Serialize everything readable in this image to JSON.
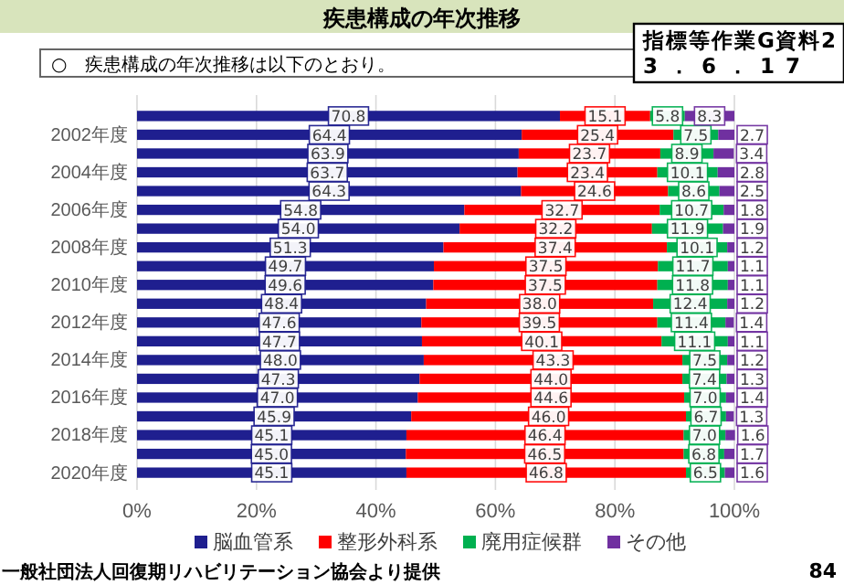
{
  "chart_data": {
    "type": "bar",
    "orientation": "horizontal",
    "stacked": true,
    "title": "疾患構成の年次推移",
    "subtitle": "○　疾患構成の年次推移は以下のとおり。",
    "categories": [
      null,
      "2002年度",
      null,
      "2004年度",
      null,
      "2006年度",
      null,
      "2008年度",
      null,
      "2010年度",
      null,
      "2012年度",
      null,
      "2014年度",
      null,
      "2016年度",
      null,
      "2018年度",
      null,
      "2020年度"
    ],
    "series": [
      {
        "name": "脳血管系",
        "color": "#1f1f8f",
        "values": [
          70.8,
          64.4,
          63.9,
          63.7,
          64.3,
          54.8,
          54.0,
          51.3,
          49.7,
          49.6,
          48.4,
          47.6,
          47.7,
          48.0,
          47.3,
          47.0,
          45.9,
          45.1,
          45.0,
          45.1
        ],
        "value_labels": [
          "70.8",
          "64.4",
          "63.9",
          "63.7",
          "64.3",
          "54.8",
          "54.0",
          "51.3",
          "49.7",
          "49.6",
          "48.4",
          "47.6",
          "47.7",
          "48.0",
          "47.3",
          "47.0",
          "45.9",
          "45.1",
          "45.0",
          "45.1"
        ]
      },
      {
        "name": "整形外科系",
        "color": "#ff0000",
        "values": [
          15.1,
          25.4,
          23.7,
          23.4,
          24.6,
          32.7,
          32.2,
          37.4,
          37.5,
          37.5,
          38.0,
          39.5,
          40.1,
          43.3,
          44.0,
          44.6,
          46.0,
          46.4,
          46.5,
          46.8
        ],
        "value_labels": [
          "15.1",
          "25.4",
          "23.7",
          "23.4",
          "24.6",
          "32.7",
          "32.2",
          "37.4",
          "37.5",
          "37.5",
          "38.0",
          "39.5",
          "40.1",
          "43.3",
          "44.0",
          "44.6",
          "46.0",
          "46.4",
          "46.5",
          "46.8"
        ]
      },
      {
        "name": "廃用症候群",
        "color": "#00b050",
        "values": [
          5.8,
          7.5,
          8.9,
          10.1,
          8.6,
          10.7,
          11.9,
          10.1,
          11.7,
          11.8,
          12.4,
          11.4,
          11.1,
          7.5,
          7.4,
          7.0,
          6.7,
          7.0,
          6.8,
          6.5
        ],
        "value_labels": [
          "5.8",
          "7.5",
          "8.9",
          "10.1",
          "8.6",
          "10.7",
          "11.9",
          "10.1",
          "11.7",
          "11.8",
          "12.4",
          "11.4",
          "11.1",
          "7.5",
          "7.4",
          "7.0",
          "6.7",
          "7.0",
          "6.8",
          "6.5"
        ]
      },
      {
        "name": "その他",
        "color": "#7030a0",
        "values": [
          8.3,
          2.7,
          3.4,
          2.8,
          2.5,
          1.8,
          1.9,
          1.2,
          1.1,
          1.1,
          1.2,
          1.4,
          1.1,
          1.2,
          1.3,
          1.4,
          1.3,
          1.6,
          1.7,
          1.6
        ],
        "value_labels": [
          "8.3",
          "2.7",
          "3.4",
          "2.8",
          "2.5",
          "1.8",
          "1.9",
          "1.2",
          "1.1",
          "1.1",
          "1.2",
          "1.4",
          "1.1",
          "1.2",
          "1.3",
          "1.4",
          "1.3",
          "1.6",
          "1.7",
          "1.6"
        ]
      }
    ],
    "xlim": [
      0,
      100
    ],
    "xticks": [
      {
        "value": 0,
        "label": "0%"
      },
      {
        "value": 20,
        "label": "20%"
      },
      {
        "value": 40,
        "label": "40%"
      },
      {
        "value": 60,
        "label": "60%"
      },
      {
        "value": 80,
        "label": "80%"
      },
      {
        "value": 100,
        "label": "100%"
      }
    ],
    "grid": "x",
    "legend": "bottom",
    "annotations": [
      "指標等作業G資料2\n3．6．17",
      "一般社団法人回復期リハビリテーション協会より提供",
      "84"
    ]
  }
}
